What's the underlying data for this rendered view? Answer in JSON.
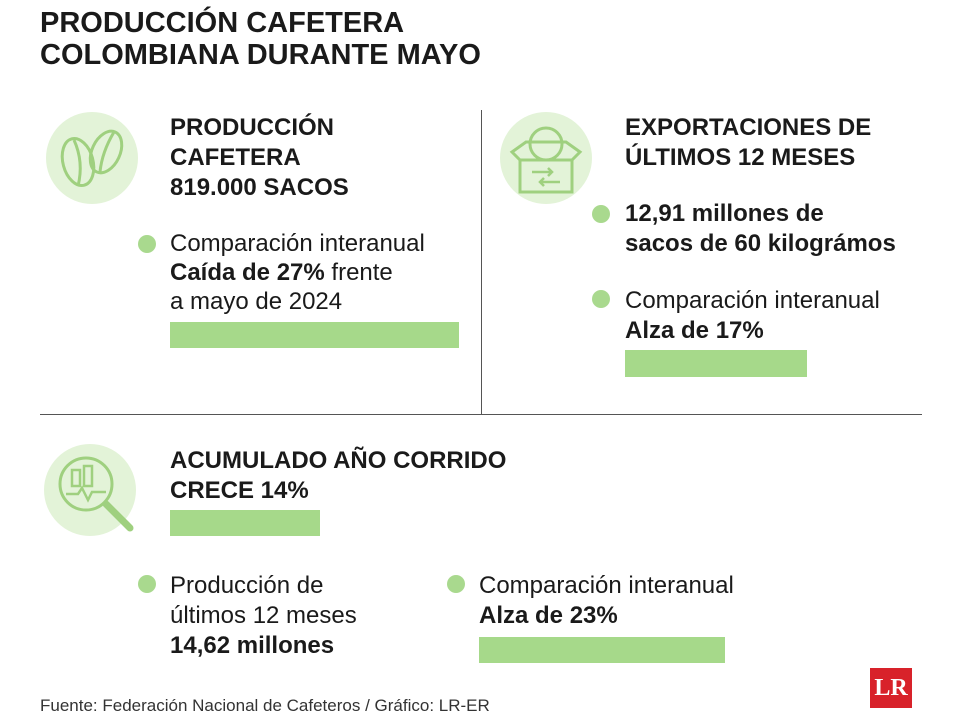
{
  "header": {
    "title_lines": [
      "PRODUCCIÓN CAFETERA",
      "COLOMBIANA DURANTE MAYO"
    ]
  },
  "panels": [
    {
      "heading_lines": [
        "PRODUCCIÓN",
        "CAFETERA",
        "819.000 SACOS"
      ],
      "bullets": [
        {
          "lines": [
            {
              "regular": "Comparación interanual"
            },
            {
              "bold": "Caída de 27%",
              "regular": " frente"
            },
            {
              "regular": "a mayo de 2024"
            }
          ]
        }
      ]
    },
    {
      "heading_lines": [
        "EXPORTACIONES DE",
        "ÚLTIMOS 12 MESES"
      ],
      "bullets": [
        {
          "lines": [
            {
              "bold": "12,91 millones de"
            },
            {
              "bold": "sacos de 60 kilográmos"
            }
          ]
        },
        {
          "lines": [
            {
              "regular": "Comparación interanual"
            },
            {
              "bold": "Alza de 17%"
            }
          ]
        }
      ]
    },
    {
      "heading_lines": [
        "ACUMULADO AÑO CORRIDO",
        "CRECE 14%"
      ],
      "bullets": [
        {
          "lines": [
            {
              "regular": "Producción de"
            },
            {
              "regular": "últimos 12 meses"
            },
            {
              "bold": "14,62 millones"
            }
          ]
        },
        {
          "lines": [
            {
              "regular": "Comparación interanual"
            },
            {
              "bold": "Alza de 23%"
            }
          ]
        }
      ]
    }
  ],
  "footer": {
    "source": "Fuente: Federación Nacional de Cafeteros / Gráfico: LR-ER",
    "logo": "LR"
  }
}
